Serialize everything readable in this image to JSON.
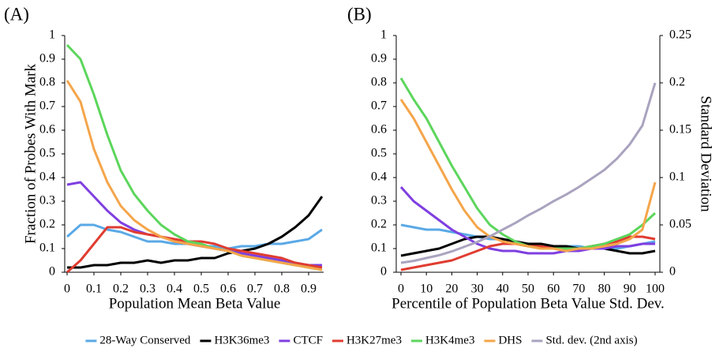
{
  "chart_data": [
    {
      "type": "line",
      "title": "(A)",
      "x_label": "Population Mean Beta Value",
      "y_label": "Fraction of Probes With Mark",
      "x": [
        0,
        0.05,
        0.1,
        0.15,
        0.2,
        0.25,
        0.3,
        0.35,
        0.4,
        0.45,
        0.5,
        0.55,
        0.6,
        0.65,
        0.7,
        0.75,
        0.8,
        0.85,
        0.9,
        0.95
      ],
      "xlim": [
        0,
        0.95
      ],
      "xticks": [
        0,
        0.1,
        0.2,
        0.3,
        0.4,
        0.5,
        0.6,
        0.7,
        0.8,
        0.9
      ],
      "ylim": [
        0,
        1
      ],
      "yticks": [
        0,
        0.1,
        0.2,
        0.3,
        0.4,
        0.5,
        0.6,
        0.7,
        0.8,
        0.9,
        1
      ],
      "series": [
        {
          "name": "28-Way Conserved",
          "color": "#5aa9e6",
          "values": [
            0.15,
            0.2,
            0.2,
            0.18,
            0.17,
            0.15,
            0.13,
            0.13,
            0.12,
            0.12,
            0.11,
            0.11,
            0.1,
            0.11,
            0.11,
            0.12,
            0.12,
            0.13,
            0.14,
            0.18
          ]
        },
        {
          "name": "H3K36me3",
          "color": "#000000",
          "values": [
            0.02,
            0.02,
            0.03,
            0.03,
            0.04,
            0.04,
            0.05,
            0.04,
            0.05,
            0.05,
            0.06,
            0.06,
            0.08,
            0.09,
            0.1,
            0.12,
            0.15,
            0.19,
            0.24,
            0.32
          ]
        },
        {
          "name": "CTCF",
          "color": "#7f3fe0",
          "values": [
            0.37,
            0.38,
            0.32,
            0.26,
            0.21,
            0.18,
            0.16,
            0.15,
            0.13,
            0.12,
            0.11,
            0.1,
            0.09,
            0.08,
            0.07,
            0.06,
            0.05,
            0.04,
            0.03,
            0.03
          ]
        },
        {
          "name": "H3K27me3",
          "color": "#e03c31",
          "values": [
            0.0,
            0.05,
            0.12,
            0.19,
            0.19,
            0.17,
            0.16,
            0.15,
            0.14,
            0.13,
            0.13,
            0.12,
            0.1,
            0.09,
            0.08,
            0.07,
            0.06,
            0.04,
            0.03,
            0.02
          ]
        },
        {
          "name": "H3K4me3",
          "color": "#5cd65c",
          "values": [
            0.96,
            0.9,
            0.75,
            0.58,
            0.43,
            0.33,
            0.26,
            0.2,
            0.16,
            0.13,
            0.12,
            0.1,
            0.09,
            0.07,
            0.06,
            0.05,
            0.04,
            0.03,
            0.02,
            0.01
          ]
        },
        {
          "name": "DHS",
          "color": "#f5a54a",
          "values": [
            0.81,
            0.72,
            0.52,
            0.38,
            0.28,
            0.22,
            0.18,
            0.15,
            0.13,
            0.12,
            0.11,
            0.1,
            0.09,
            0.07,
            0.06,
            0.05,
            0.04,
            0.03,
            0.02,
            0.01
          ]
        }
      ]
    },
    {
      "type": "line",
      "title": "(B)",
      "x_label": "Percentile of Population Beta Value Std. Dev.",
      "y2_label": "Standard Deviation",
      "x": [
        0,
        5,
        10,
        15,
        20,
        25,
        30,
        35,
        40,
        45,
        50,
        55,
        60,
        65,
        70,
        75,
        80,
        85,
        90,
        95,
        100
      ],
      "xlim": [
        0,
        100
      ],
      "xticks": [
        0,
        10,
        20,
        30,
        40,
        50,
        60,
        70,
        80,
        90,
        100
      ],
      "ylim": [
        0,
        1
      ],
      "yticks": [
        0,
        0.1,
        0.2,
        0.3,
        0.4,
        0.5,
        0.6,
        0.7,
        0.8,
        0.9,
        1
      ],
      "y2lim": [
        0,
        0.25
      ],
      "y2ticks": [
        0,
        0.05,
        0.1,
        0.15,
        0.2,
        0.25
      ],
      "series": [
        {
          "name": "28-Way Conserved",
          "color": "#5aa9e6",
          "values": [
            0.2,
            0.19,
            0.18,
            0.18,
            0.17,
            0.16,
            0.15,
            0.14,
            0.14,
            0.13,
            0.12,
            0.12,
            0.11,
            0.11,
            0.11,
            0.1,
            0.1,
            0.1,
            0.11,
            0.12,
            0.13
          ]
        },
        {
          "name": "H3K36me3",
          "color": "#000000",
          "values": [
            0.07,
            0.08,
            0.09,
            0.1,
            0.12,
            0.14,
            0.15,
            0.15,
            0.14,
            0.13,
            0.12,
            0.12,
            0.11,
            0.11,
            0.1,
            0.1,
            0.1,
            0.09,
            0.08,
            0.08,
            0.09
          ]
        },
        {
          "name": "CTCF",
          "color": "#7f3fe0",
          "values": [
            0.36,
            0.3,
            0.26,
            0.22,
            0.18,
            0.15,
            0.12,
            0.1,
            0.09,
            0.09,
            0.08,
            0.08,
            0.08,
            0.09,
            0.09,
            0.1,
            0.1,
            0.11,
            0.11,
            0.12,
            0.12
          ]
        },
        {
          "name": "H3K27me3",
          "color": "#e03c31",
          "values": [
            0.01,
            0.02,
            0.03,
            0.04,
            0.05,
            0.07,
            0.09,
            0.11,
            0.12,
            0.12,
            0.11,
            0.11,
            0.1,
            0.1,
            0.1,
            0.11,
            0.12,
            0.13,
            0.15,
            0.15,
            0.14
          ]
        },
        {
          "name": "H3K4me3",
          "color": "#5cd65c",
          "values": [
            0.82,
            0.73,
            0.65,
            0.55,
            0.45,
            0.36,
            0.27,
            0.2,
            0.16,
            0.13,
            0.11,
            0.1,
            0.1,
            0.1,
            0.1,
            0.11,
            0.12,
            0.14,
            0.16,
            0.2,
            0.25
          ]
        },
        {
          "name": "DHS",
          "color": "#f5a54a",
          "values": [
            0.73,
            0.65,
            0.55,
            0.45,
            0.35,
            0.26,
            0.19,
            0.15,
            0.13,
            0.12,
            0.11,
            0.1,
            0.1,
            0.09,
            0.1,
            0.1,
            0.11,
            0.12,
            0.14,
            0.18,
            0.38
          ]
        },
        {
          "name": "Std. dev. (2nd axis)",
          "color": "#aaa3bf",
          "axis": "y2",
          "values": [
            0.01,
            0.012,
            0.015,
            0.018,
            0.022,
            0.027,
            0.032,
            0.038,
            0.045,
            0.052,
            0.06,
            0.067,
            0.075,
            0.082,
            0.09,
            0.099,
            0.108,
            0.12,
            0.135,
            0.155,
            0.2
          ]
        }
      ]
    }
  ]
}
